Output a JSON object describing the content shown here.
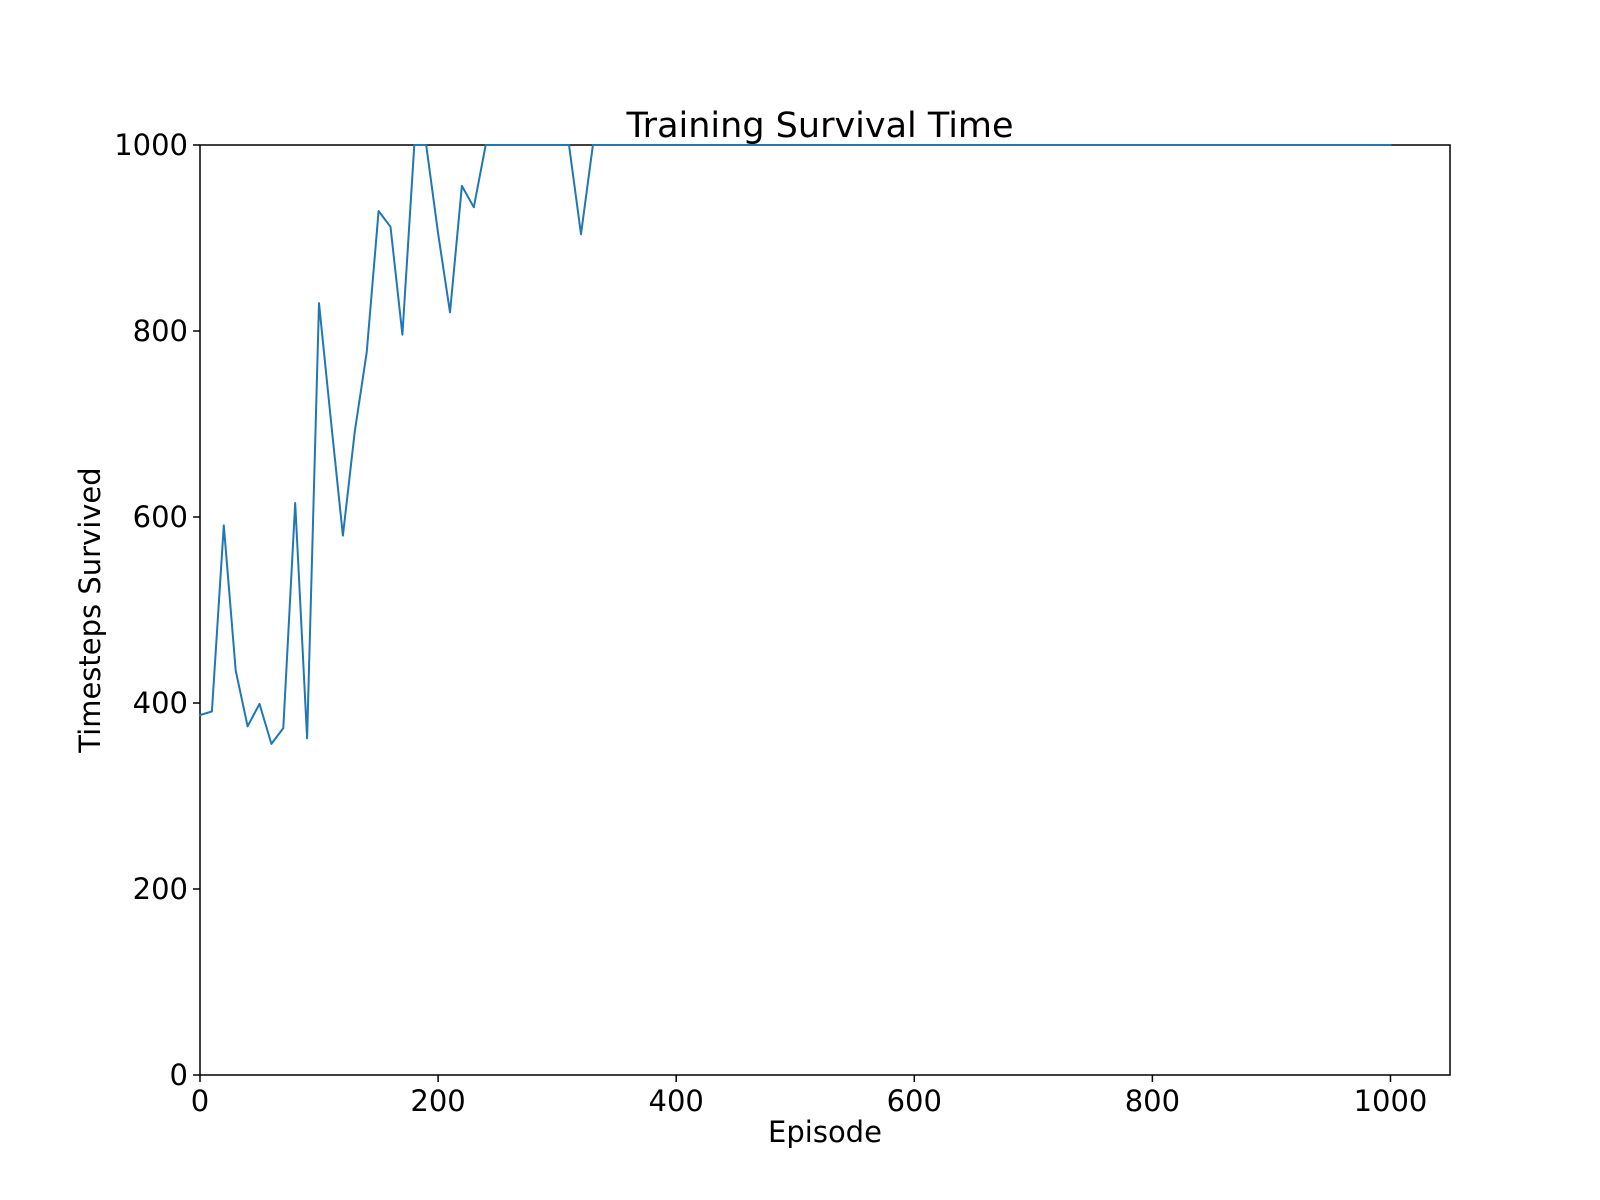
{
  "chart_data": {
    "type": "line",
    "title": "Training Survival Time",
    "xlabel": "Episode",
    "ylabel": "Timesteps Survived",
    "xlim": [
      0,
      1050
    ],
    "ylim": [
      0,
      1000
    ],
    "x_ticks": [
      0,
      200,
      400,
      600,
      800,
      1000
    ],
    "y_ticks": [
      0,
      200,
      400,
      600,
      800,
      1000
    ],
    "grid": false,
    "line_color": "#1f77b4",
    "series": [
      {
        "x": [
          0,
          10,
          20,
          30,
          40,
          50,
          60,
          70,
          80,
          90,
          100,
          110,
          120,
          130,
          140,
          150,
          160,
          170,
          180,
          190,
          200,
          210,
          220,
          230,
          240,
          250,
          260,
          270,
          280,
          290,
          300,
          310,
          320,
          330,
          340,
          1000
        ],
        "y": [
          387,
          391,
          591,
          435,
          375,
          399,
          356,
          373,
          615,
          362,
          830,
          703,
          580,
          692,
          777,
          929,
          912,
          796,
          1000,
          1000,
          905,
          820,
          956,
          933,
          1000,
          1000,
          1000,
          1000,
          1000,
          1000,
          1000,
          1000,
          904,
          1000,
          1000,
          1000
        ]
      }
    ]
  }
}
